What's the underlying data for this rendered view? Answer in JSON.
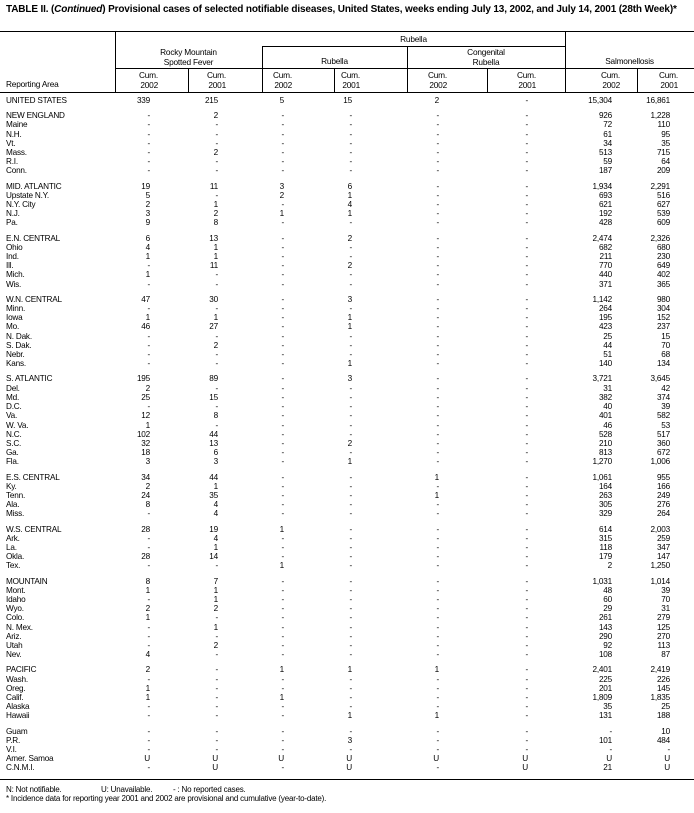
{
  "title": {
    "prefix": "TABLE II. (",
    "italic": "Continued",
    "rest": ") Provisional cases of selected notifiable diseases, United States, weeks ending July 13, 2002, and July 14, 2001 (28th Week)*"
  },
  "header": {
    "reporting_area": "Reporting Area",
    "rubella_group": "Rubella",
    "rmsf_line1": "Rocky Mountain",
    "rmsf_line2": "Spotted Fever",
    "rubella": "Rubella",
    "congenital_line1": "Congenital",
    "congenital_line2": "Rubella",
    "salmonellosis": "Salmonellosis",
    "cum": "Cum.",
    "y2002": "2002",
    "y2001": "2001"
  },
  "groups": [
    [
      [
        "UNITED STATES",
        "339",
        "215",
        "5",
        "15",
        "2",
        "-",
        "15,304",
        "16,861"
      ]
    ],
    [
      [
        "NEW ENGLAND",
        "-",
        "2",
        "-",
        "-",
        "-",
        "-",
        "926",
        "1,228"
      ],
      [
        "Maine",
        "-",
        "-",
        "-",
        "-",
        "-",
        "-",
        "72",
        "110"
      ],
      [
        "N.H.",
        "-",
        "-",
        "-",
        "-",
        "-",
        "-",
        "61",
        "95"
      ],
      [
        "Vt.",
        "-",
        "-",
        "-",
        "-",
        "-",
        "-",
        "34",
        "35"
      ],
      [
        "Mass.",
        "-",
        "2",
        "-",
        "-",
        "-",
        "-",
        "513",
        "715"
      ],
      [
        "R.I.",
        "-",
        "-",
        "-",
        "-",
        "-",
        "-",
        "59",
        "64"
      ],
      [
        "Conn.",
        "-",
        "-",
        "-",
        "-",
        "-",
        "-",
        "187",
        "209"
      ]
    ],
    [
      [
        "MID. ATLANTIC",
        "19",
        "11",
        "3",
        "6",
        "-",
        "-",
        "1,934",
        "2,291"
      ],
      [
        "Upstate N.Y.",
        "5",
        "-",
        "2",
        "1",
        "-",
        "-",
        "693",
        "516"
      ],
      [
        "N.Y. City",
        "2",
        "1",
        "-",
        "4",
        "-",
        "-",
        "621",
        "627"
      ],
      [
        "N.J.",
        "3",
        "2",
        "1",
        "1",
        "-",
        "-",
        "192",
        "539"
      ],
      [
        "Pa.",
        "9",
        "8",
        "-",
        "-",
        "-",
        "-",
        "428",
        "609"
      ]
    ],
    [
      [
        "E.N. CENTRAL",
        "6",
        "13",
        "-",
        "2",
        "-",
        "-",
        "2,474",
        "2,326"
      ],
      [
        "Ohio",
        "4",
        "1",
        "-",
        "-",
        "-",
        "-",
        "682",
        "680"
      ],
      [
        "Ind.",
        "1",
        "1",
        "-",
        "-",
        "-",
        "-",
        "211",
        "230"
      ],
      [
        "Ill.",
        "-",
        "11",
        "-",
        "2",
        "-",
        "-",
        "770",
        "649"
      ],
      [
        "Mich.",
        "1",
        "-",
        "-",
        "-",
        "-",
        "-",
        "440",
        "402"
      ],
      [
        "Wis.",
        "-",
        "-",
        "-",
        "-",
        "-",
        "-",
        "371",
        "365"
      ]
    ],
    [
      [
        "W.N. CENTRAL",
        "47",
        "30",
        "-",
        "3",
        "-",
        "-",
        "1,142",
        "980"
      ],
      [
        "Minn.",
        "-",
        "-",
        "-",
        "-",
        "-",
        "-",
        "264",
        "304"
      ],
      [
        "Iowa",
        "1",
        "1",
        "-",
        "1",
        "-",
        "-",
        "195",
        "152"
      ],
      [
        "Mo.",
        "46",
        "27",
        "-",
        "1",
        "-",
        "-",
        "423",
        "237"
      ],
      [
        "N. Dak.",
        "-",
        "-",
        "-",
        "-",
        "-",
        "-",
        "25",
        "15"
      ],
      [
        "S. Dak.",
        "-",
        "2",
        "-",
        "-",
        "-",
        "-",
        "44",
        "70"
      ],
      [
        "Nebr.",
        "-",
        "-",
        "-",
        "-",
        "-",
        "-",
        "51",
        "68"
      ],
      [
        "Kans.",
        "-",
        "-",
        "-",
        "1",
        "-",
        "-",
        "140",
        "134"
      ]
    ],
    [
      [
        "S. ATLANTIC",
        "195",
        "89",
        "-",
        "3",
        "-",
        "-",
        "3,721",
        "3,645"
      ],
      [
        "Del.",
        "2",
        "-",
        "-",
        "-",
        "-",
        "-",
        "31",
        "42"
      ],
      [
        "Md.",
        "25",
        "15",
        "-",
        "-",
        "-",
        "-",
        "382",
        "374"
      ],
      [
        "D.C.",
        "-",
        "-",
        "-",
        "-",
        "-",
        "-",
        "40",
        "39"
      ],
      [
        "Va.",
        "12",
        "8",
        "-",
        "-",
        "-",
        "-",
        "401",
        "582"
      ],
      [
        "W. Va.",
        "1",
        "-",
        "-",
        "-",
        "-",
        "-",
        "46",
        "53"
      ],
      [
        "N.C.",
        "102",
        "44",
        "-",
        "-",
        "-",
        "-",
        "528",
        "517"
      ],
      [
        "S.C.",
        "32",
        "13",
        "-",
        "2",
        "-",
        "-",
        "210",
        "360"
      ],
      [
        "Ga.",
        "18",
        "6",
        "-",
        "-",
        "-",
        "-",
        "813",
        "672"
      ],
      [
        "Fla.",
        "3",
        "3",
        "-",
        "1",
        "-",
        "-",
        "1,270",
        "1,006"
      ]
    ],
    [
      [
        "E.S. CENTRAL",
        "34",
        "44",
        "-",
        "-",
        "1",
        "-",
        "1,061",
        "955"
      ],
      [
        "Ky.",
        "2",
        "1",
        "-",
        "-",
        "-",
        "-",
        "164",
        "166"
      ],
      [
        "Tenn.",
        "24",
        "35",
        "-",
        "-",
        "1",
        "-",
        "263",
        "249"
      ],
      [
        "Ala.",
        "8",
        "4",
        "-",
        "-",
        "-",
        "-",
        "305",
        "276"
      ],
      [
        "Miss.",
        "-",
        "4",
        "-",
        "-",
        "-",
        "-",
        "329",
        "264"
      ]
    ],
    [
      [
        "W.S. CENTRAL",
        "28",
        "19",
        "1",
        "-",
        "-",
        "-",
        "614",
        "2,003"
      ],
      [
        "Ark.",
        "-",
        "4",
        "-",
        "-",
        "-",
        "-",
        "315",
        "259"
      ],
      [
        "La.",
        "-",
        "1",
        "-",
        "-",
        "-",
        "-",
        "118",
        "347"
      ],
      [
        "Okla.",
        "28",
        "14",
        "-",
        "-",
        "-",
        "-",
        "179",
        "147"
      ],
      [
        "Tex.",
        "-",
        "-",
        "1",
        "-",
        "-",
        "-",
        "2",
        "1,250"
      ]
    ],
    [
      [
        "MOUNTAIN",
        "8",
        "7",
        "-",
        "-",
        "-",
        "-",
        "1,031",
        "1,014"
      ],
      [
        "Mont.",
        "1",
        "1",
        "-",
        "-",
        "-",
        "-",
        "48",
        "39"
      ],
      [
        "Idaho",
        "-",
        "1",
        "-",
        "-",
        "-",
        "-",
        "60",
        "70"
      ],
      [
        "Wyo.",
        "2",
        "2",
        "-",
        "-",
        "-",
        "-",
        "29",
        "31"
      ],
      [
        "Colo.",
        "1",
        "-",
        "-",
        "-",
        "-",
        "-",
        "261",
        "279"
      ],
      [
        "N. Mex.",
        "-",
        "1",
        "-",
        "-",
        "-",
        "-",
        "143",
        "125"
      ],
      [
        "Ariz.",
        "-",
        "-",
        "-",
        "-",
        "-",
        "-",
        "290",
        "270"
      ],
      [
        "Utah",
        "-",
        "2",
        "-",
        "-",
        "-",
        "-",
        "92",
        "113"
      ],
      [
        "Nev.",
        "4",
        "-",
        "-",
        "-",
        "-",
        "-",
        "108",
        "87"
      ]
    ],
    [
      [
        "PACIFIC",
        "2",
        "-",
        "1",
        "1",
        "1",
        "-",
        "2,401",
        "2,419"
      ],
      [
        "Wash.",
        "-",
        "-",
        "-",
        "-",
        "-",
        "-",
        "225",
        "226"
      ],
      [
        "Oreg.",
        "1",
        "-",
        "-",
        "-",
        "-",
        "-",
        "201",
        "145"
      ],
      [
        "Calif.",
        "1",
        "-",
        "1",
        "-",
        "-",
        "-",
        "1,809",
        "1,835"
      ],
      [
        "Alaska",
        "-",
        "-",
        "-",
        "-",
        "-",
        "-",
        "35",
        "25"
      ],
      [
        "Hawaii",
        "-",
        "-",
        "-",
        "1",
        "1",
        "-",
        "131",
        "188"
      ]
    ],
    [
      [
        "Guam",
        "-",
        "-",
        "-",
        "-",
        "-",
        "-",
        "-",
        "10"
      ],
      [
        "P.R.",
        "-",
        "-",
        "-",
        "3",
        "-",
        "-",
        "101",
        "484"
      ],
      [
        "V.I.",
        "-",
        "-",
        "-",
        "-",
        "-",
        "-",
        "-",
        "-"
      ],
      [
        "Amer. Samoa",
        "U",
        "U",
        "U",
        "U",
        "U",
        "U",
        "U",
        "U"
      ],
      [
        "C.N.M.I.",
        "-",
        "U",
        "-",
        "U",
        "-",
        "U",
        "21",
        "U"
      ]
    ]
  ],
  "footer": {
    "legend_n": "N: Not notifiable.",
    "legend_u": "U: Unavailable.",
    "legend_dash": "- : No reported cases.",
    "note": "* Incidence data for reporting year 2001 and 2002 are provisional and cumulative (year-to-date)."
  }
}
